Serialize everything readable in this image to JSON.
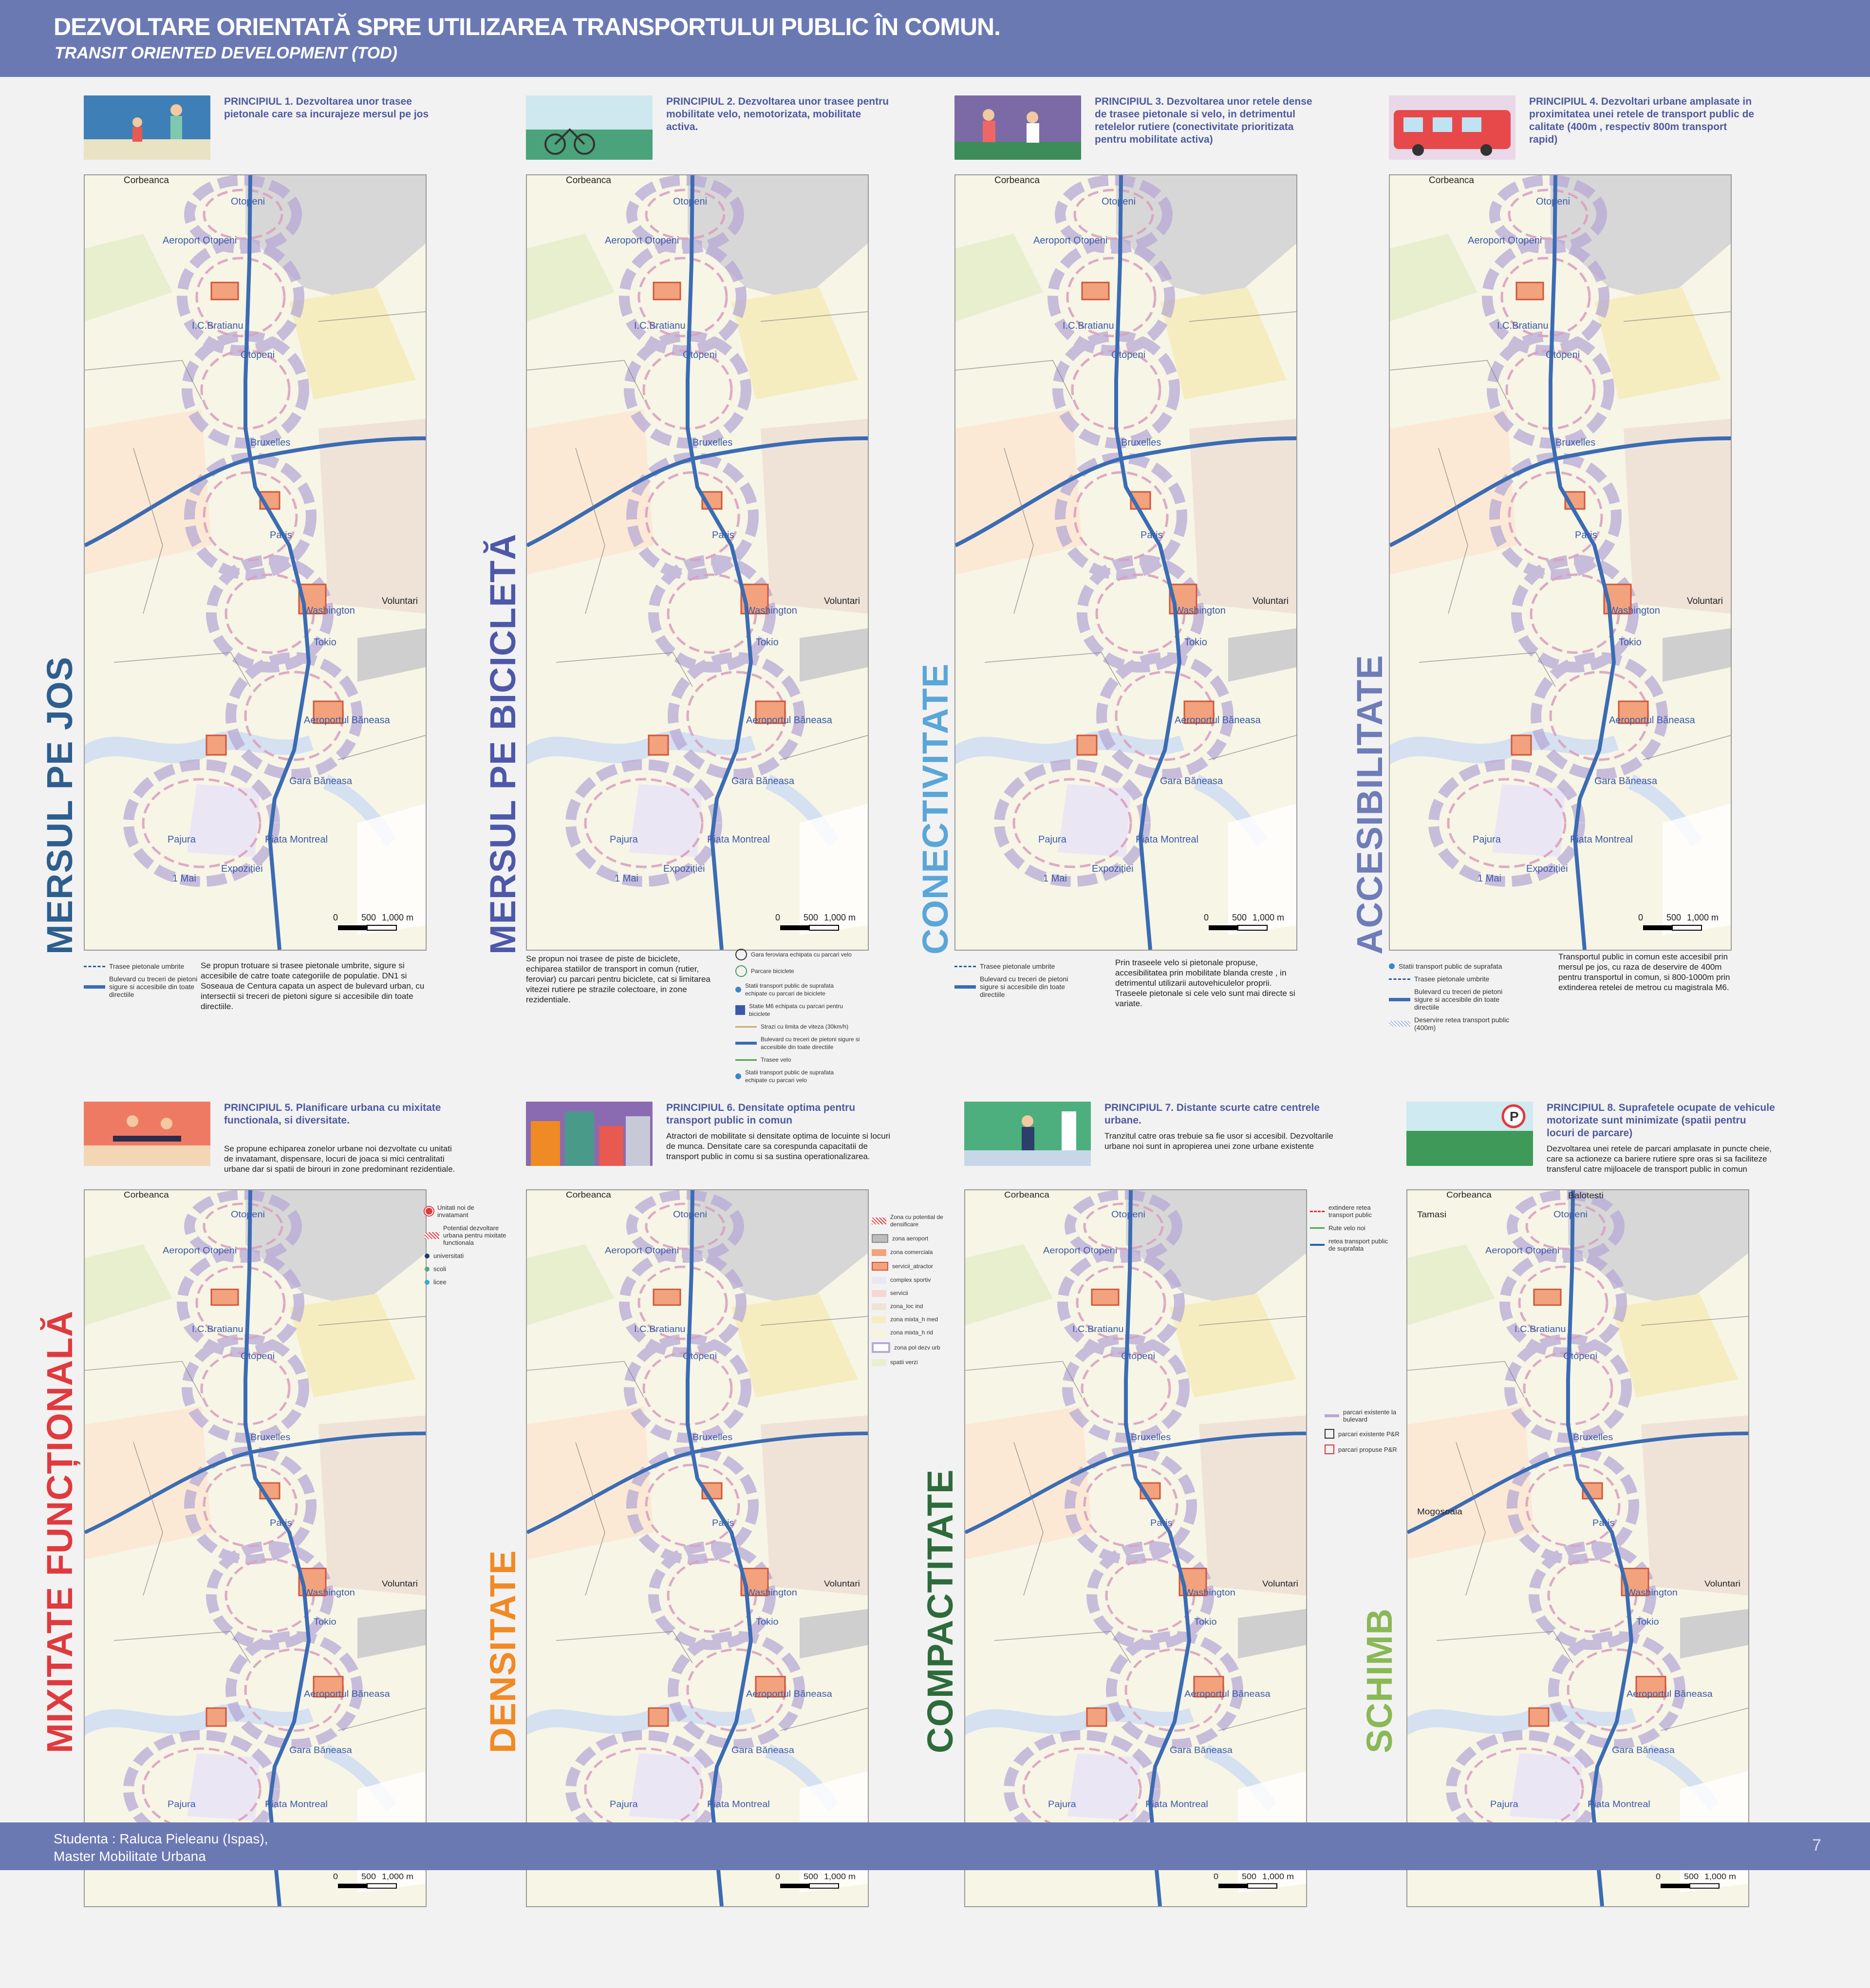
{
  "header": {
    "title": "DEZVOLTARE ORIENTATĂ SPRE UTILIZAREA TRANSPORTULUI PUBLIC ÎN COMUN.",
    "subtitle": "TRANSIT ORIENTED DEVELOPMENT (TOD)"
  },
  "footer": {
    "student": "Studenta : Raluca Pieleanu (Ispas),",
    "program": "Master Mobilitate Urbana",
    "page": "7"
  },
  "colors": {
    "header_bg": "#6b79b3",
    "mersul_pe_jos": "#2e5e8e",
    "mersul_pe_bicicleta": "#4d58a8",
    "conectivitate": "#5aa6d8",
    "accesibilitate": "#6e7cb8",
    "mixitate": "#e03a3e",
    "densitate": "#f08a24",
    "compactitate": "#2e6b3a",
    "schimb": "#8ab856"
  },
  "map_places": {
    "corbeanca": "Corbeanca",
    "otopeni": "Otopeni",
    "aeroport_otopeni": "Aeroport Otopeni",
    "ic_bratianu": "I.C.Bratianu",
    "otopeni2": "Otopeni",
    "bruxelles": "Bruxelles",
    "paris": "Paris",
    "voluntari": "Voluntari",
    "washington": "Washington",
    "tokio": "Tokio",
    "aeroportul_baneasa": "Aeroportul Băneasa",
    "gara_baneasa": "Gara Băneasa",
    "pajura": "Pajura",
    "piata_montreal": "Piata Montreal",
    "expozitiei": "Expoziției",
    "mai1": "1 Mai",
    "scale_500": "500",
    "scale_1000": "1,000 m",
    "scale_0": "0",
    "balotesti": "Balotesti",
    "tamasi": "Tamasi",
    "mogosoaia": "Mogosoaia"
  },
  "panels": {
    "p1": {
      "title": "PRINCIPIUL 1. Dezvoltarea unor trasee pietonale care sa incurajeze mersul pe jos",
      "vertical": "MERSUL PE JOS",
      "legend": [
        "Trasee pietonale umbrite",
        "Bulevard cu treceri de pietoni sigure si accesibile din toate directiile"
      ],
      "desc": "Se propun trotuare si trasee pietonale umbrite, sigure si accesibile de catre toate categoriile de populatie. DN1 si Soseaua de Centura capata un aspect de bulevard urban, cu intersectii si treceri de pietoni sigure si accesibile din toate directiile."
    },
    "p2": {
      "title": "PRINCIPIUL 2. Dezvoltarea unor trasee pentru mobilitate velo, nemotorizata, mobilitate activa.",
      "vertical": "MERSUL PE BICICLETĂ",
      "desc": "Se propun noi trasee de piste de biciclete, echiparea statiilor de transport in comun (rutier, feroviar) cu parcari pentru biciclete, cat si limitarea vitezei rutiere pe strazile colectoare, in zone rezidentiale.",
      "legend": [
        "Gara feroviara echipata cu parcari velo",
        "Parcare biciclete",
        "Statii transport public de suprafata echipate cu parcari de biciclete",
        "Statie M6 echipata cu parcari pentru biciclete",
        "Strazi cu limita de viteza (30km/h)",
        "Bulevard cu treceri de pietoni sigure si accesibile din toate directiile",
        "Trasee velo",
        "Statii transport public de suprafata echipate cu parcari velo"
      ]
    },
    "p3": {
      "title": "PRINCIPIUL 3. Dezvoltarea unor retele dense de trasee pietonale si velo, in detrimentul retelelor rutiere (conectivitate prioritizata pentru mobilitate activa)",
      "vertical": "CONECTIVITATE",
      "legend": [
        "Trasee pietonale umbrite",
        "Bulevard cu treceri de pietoni sigure si accesibile din toate directiile"
      ],
      "desc": "Prin traseele velo si pietonale propuse, accesibilitatea prin mobilitate blanda creste , in detrimentul utilizarii autovehiculelor proprii. Traseele pietonale si cele velo sunt mai directe si variate."
    },
    "p4": {
      "title": "PRINCIPIUL 4. Dezvoltari urbane amplasate in proximitatea unei retele de transport public de calitate (400m , respectiv 800m transport rapid)",
      "vertical": "ACCESIBILITATE",
      "legend": [
        "Statii transport public de suprafata",
        "Trasee pietonale umbrite",
        "Bulevard cu treceri de pietoni sigure si accesibile din toate directiile",
        "Deservire retea transport public (400m)"
      ],
      "desc": "Transportul public in comun este accesibil prin mersul pe jos, cu raza de deservire de 400m pentru transportul in comun, si 800-1000m prin extinderea retelei de metrou cu magistrala M6."
    },
    "p5": {
      "title": "PRINCIPIUL 5. Planificare urbana cu mixitate functionala, si diversitate.",
      "vertical": "MIXITATE FUNCȚIONALĂ",
      "sub": "Se propune echiparea zonelor urbane noi dezvoltate cu unitati de invatamant, dispensare, locuri de joaca si mici centralitati urbane dar si spatii de birouri in zone predominant rezidentiale.",
      "legend": [
        "Unitati noi de invatamant",
        "Potential dezvoltare urbana pentru mixitate functionala",
        "universitati",
        "scoli",
        "licee"
      ]
    },
    "p6": {
      "title": "PRINCIPIUL 6. Densitate optima pentru transport public in comun",
      "vertical": "DENSITATE",
      "sub": "Atractori de mobilitate si densitate optima de locuinte si locuri de munca. Densitate care sa corespunda capacitatii de transport public in comu si sa sustina operationalizarea.",
      "legend": [
        "Zona cu potential de densificare",
        "zona aeroport",
        "zona comerciala",
        "servicii_atractor",
        "complex sportiv",
        "servicii",
        "zona_loc ind",
        "zona mixta_h med",
        "zona mixta_h rid",
        "zona pol dezv urb",
        "spatii verzi"
      ]
    },
    "p7": {
      "title": "PRINCIPIUL 7. Distante scurte catre centrele urbane.",
      "vertical": "COMPACTITATE",
      "sub": "Tranzitul catre oras trebuie sa fie usor si accesibil. Dezvoltarile urbane noi sunt in apropierea unei zone urbane existente",
      "legend": [
        "extindere retea transport public",
        "Rute velo noi",
        "retea transport public de suprafata",
        "parcari existente la bulevard",
        "parcari existente P&R",
        "parcari propuse P&R"
      ]
    },
    "p8": {
      "title": "PRINCIPIUL 8. Suprafetele ocupate de vehicule motorizate sunt minimizate (spatii pentru locuri de parcare)",
      "vertical": "SCHIMB",
      "sub": "Dezvoltarea unei retele de parcari amplasate in puncte cheie, care sa actioneze ca bariere rutiere spre oras si sa faciliteze transferul catre mijloacele de transport public in comun"
    }
  }
}
